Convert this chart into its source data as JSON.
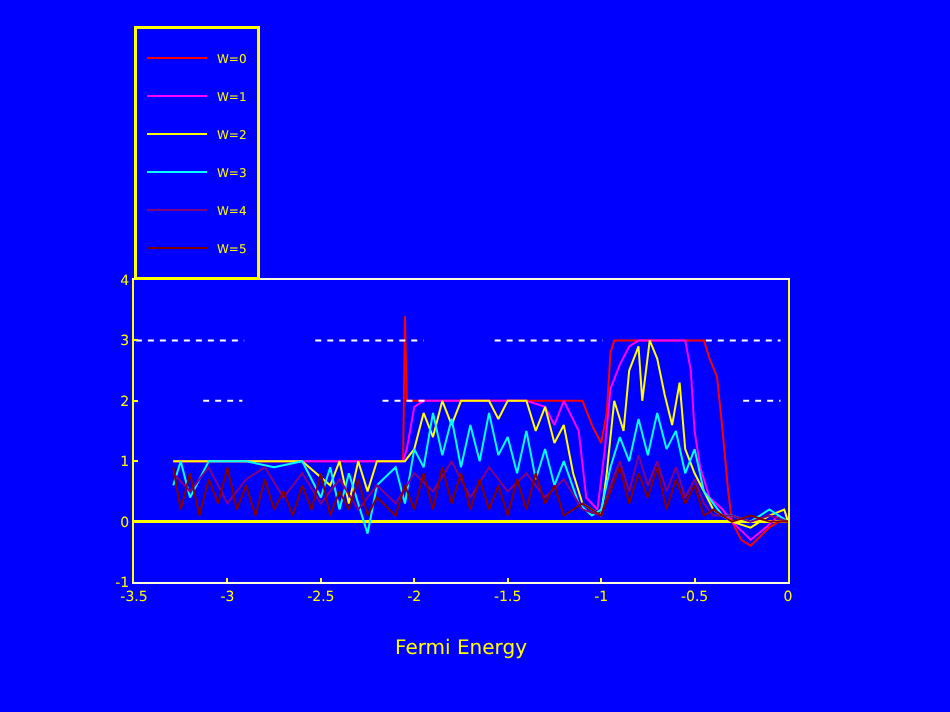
{
  "chart_data": {
    "type": "line",
    "xlabel": "Fermi Energy",
    "xlim": [
      -3.5,
      0
    ],
    "xticks": [
      -3.5,
      -3,
      -2.5,
      -2,
      -1.5,
      -1,
      -0.5,
      0
    ],
    "ylim": [
      -1,
      4
    ],
    "yticks": [
      -1,
      0,
      1,
      2,
      3,
      4
    ],
    "grid": false,
    "ref_lines": [
      {
        "axis": "y",
        "value": 0,
        "color": "#ffff00"
      }
    ],
    "legend": "top left",
    "marker": "none",
    "line_style": "solid",
    "series": [
      {
        "name": "W=0",
        "color": "#ff0000",
        "x": [
          -3.29,
          -2.06,
          -2.05,
          -2.04,
          -1.1,
          -1.05,
          -1.0,
          -0.97,
          -0.95,
          -0.93,
          -0.45,
          -0.42,
          -0.38,
          -0.35,
          -0.32,
          -0.3,
          -0.25,
          -0.2,
          -0.15,
          -0.1,
          -0.05,
          0
        ],
        "values": [
          1,
          1,
          3.4,
          2,
          2,
          1.6,
          1.3,
          1.8,
          2.8,
          3,
          3,
          2.7,
          2.4,
          1.5,
          0.5,
          0,
          -0.3,
          -0.4,
          -0.25,
          -0.1,
          0,
          0
        ]
      },
      {
        "name": "W=1",
        "color": "#ff00ff",
        "x": [
          -3.29,
          -2.06,
          -2.04,
          -2.0,
          -1.95,
          -1.4,
          -1.3,
          -1.25,
          -1.2,
          -1.12,
          -1.08,
          -1.02,
          -0.98,
          -0.95,
          -0.9,
          -0.85,
          -0.8,
          -0.55,
          -0.52,
          -0.5,
          -0.47,
          -0.42,
          -0.35,
          -0.3,
          -0.2,
          -0.12,
          -0.05,
          0
        ],
        "values": [
          1,
          1,
          1.2,
          1.9,
          2,
          2,
          1.9,
          1.6,
          2,
          1.5,
          0.4,
          0.2,
          1.2,
          2.2,
          2.6,
          2.9,
          3,
          3,
          2.5,
          1.5,
          0.9,
          0.4,
          0.2,
          0,
          -0.3,
          -0.1,
          0.1,
          0
        ]
      },
      {
        "name": "W=2",
        "color": "#ffff00",
        "x": [
          -3.29,
          -3.1,
          -2.9,
          -2.6,
          -2.45,
          -2.4,
          -2.35,
          -2.3,
          -2.25,
          -2.2,
          -2.05,
          -2.0,
          -1.95,
          -1.9,
          -1.85,
          -1.8,
          -1.75,
          -1.6,
          -1.55,
          -1.5,
          -1.4,
          -1.35,
          -1.3,
          -1.25,
          -1.2,
          -1.15,
          -1.1,
          -1.05,
          -1.0,
          -0.97,
          -0.93,
          -0.88,
          -0.85,
          -0.8,
          -0.78,
          -0.74,
          -0.7,
          -0.66,
          -0.62,
          -0.58,
          -0.55,
          -0.5,
          -0.45,
          -0.4,
          -0.35,
          -0.3,
          -0.2,
          -0.1,
          -0.02,
          0
        ],
        "values": [
          1,
          1,
          1,
          1,
          0.6,
          1,
          0.3,
          1,
          0.5,
          1,
          1,
          1.2,
          1.8,
          1.4,
          2,
          1.6,
          2,
          2,
          1.7,
          2,
          2,
          1.5,
          1.9,
          1.3,
          1.6,
          0.8,
          0.3,
          0.2,
          0.1,
          0.8,
          2,
          1.5,
          2.5,
          2.9,
          2,
          3,
          2.7,
          2.1,
          1.6,
          2.3,
          1.2,
          0.8,
          0.5,
          0.2,
          0.1,
          0,
          -0.1,
          0.1,
          0.2,
          0
        ]
      },
      {
        "name": "W=3",
        "color": "#00ffff",
        "x": [
          -3.29,
          -3.25,
          -3.2,
          -3.1,
          -2.9,
          -2.75,
          -2.6,
          -2.5,
          -2.45,
          -2.4,
          -2.35,
          -2.25,
          -2.2,
          -2.1,
          -2.05,
          -2.0,
          -1.95,
          -1.9,
          -1.85,
          -1.8,
          -1.75,
          -1.7,
          -1.65,
          -1.6,
          -1.55,
          -1.5,
          -1.45,
          -1.4,
          -1.35,
          -1.3,
          -1.25,
          -1.2,
          -1.12,
          -1.05,
          -1.0,
          -0.95,
          -0.9,
          -0.85,
          -0.8,
          -0.75,
          -0.7,
          -0.65,
          -0.6,
          -0.55,
          -0.5,
          -0.45,
          -0.4,
          -0.35,
          -0.3,
          -0.2,
          -0.1,
          0
        ],
        "values": [
          0.6,
          1,
          0.4,
          1,
          1,
          0.9,
          1,
          0.4,
          0.9,
          0.2,
          0.8,
          -0.2,
          0.6,
          0.9,
          0.3,
          1.2,
          0.9,
          1.8,
          1.1,
          1.7,
          0.9,
          1.6,
          1.0,
          1.8,
          1.1,
          1.4,
          0.8,
          1.5,
          0.7,
          1.2,
          0.6,
          1.0,
          0.3,
          0.1,
          0.2,
          0.9,
          1.4,
          1.0,
          1.7,
          1.1,
          1.8,
          1.2,
          1.5,
          0.8,
          1.2,
          0.5,
          0.3,
          0.1,
          0.1,
          0,
          0.2,
          0
        ]
      },
      {
        "name": "W=4",
        "color": "#800080",
        "x": [
          -3.29,
          -3.2,
          -3.1,
          -3.0,
          -2.9,
          -2.8,
          -2.7,
          -2.6,
          -2.5,
          -2.4,
          -2.3,
          -2.2,
          -2.1,
          -2.0,
          -1.9,
          -1.8,
          -1.7,
          -1.6,
          -1.5,
          -1.4,
          -1.3,
          -1.2,
          -1.1,
          -1.0,
          -0.95,
          -0.9,
          -0.85,
          -0.8,
          -0.75,
          -0.7,
          -0.65,
          -0.6,
          -0.55,
          -0.5,
          -0.45,
          -0.4,
          -0.3,
          -0.2,
          -0.1,
          0
        ],
        "values": [
          0.8,
          0.5,
          0.9,
          0.3,
          0.7,
          0.9,
          0.4,
          0.8,
          0.3,
          0.7,
          0.2,
          0.6,
          0.3,
          0.8,
          0.5,
          1.0,
          0.4,
          0.9,
          0.5,
          0.8,
          0.4,
          0.7,
          0.2,
          0.1,
          0.6,
          1.0,
          0.5,
          1.1,
          0.6,
          1.0,
          0.5,
          0.9,
          0.4,
          0.7,
          0.3,
          0.1,
          0.1,
          0,
          0.1,
          0
        ]
      },
      {
        "name": "W=5",
        "color": "#800000",
        "x": [
          -3.29,
          -3.25,
          -3.2,
          -3.15,
          -3.1,
          -3.05,
          -3.0,
          -2.95,
          -2.9,
          -2.85,
          -2.8,
          -2.75,
          -2.7,
          -2.65,
          -2.6,
          -2.55,
          -2.5,
          -2.45,
          -2.4,
          -2.35,
          -2.3,
          -2.25,
          -2.2,
          -2.1,
          -2.05,
          -2.0,
          -1.95,
          -1.9,
          -1.85,
          -1.8,
          -1.75,
          -1.7,
          -1.65,
          -1.6,
          -1.55,
          -1.5,
          -1.45,
          -1.4,
          -1.35,
          -1.3,
          -1.25,
          -1.2,
          -1.1,
          -1.0,
          -0.95,
          -0.9,
          -0.85,
          -0.8,
          -0.75,
          -0.7,
          -0.65,
          -0.6,
          -0.55,
          -0.5,
          -0.45,
          -0.4,
          -0.3,
          -0.2,
          -0.1,
          0
        ],
        "values": [
          0.9,
          0.2,
          0.8,
          0.1,
          0.7,
          0.3,
          0.9,
          0.2,
          0.6,
          0.1,
          0.7,
          0.2,
          0.5,
          0.1,
          0.6,
          0.2,
          0.8,
          0.1,
          0.5,
          0.2,
          0.7,
          0.1,
          0.4,
          0.1,
          0.6,
          0.2,
          0.8,
          0.2,
          0.9,
          0.3,
          0.8,
          0.2,
          0.7,
          0.2,
          0.6,
          0.1,
          0.7,
          0.2,
          0.8,
          0.3,
          0.6,
          0.1,
          0.3,
          0.1,
          0.5,
          0.9,
          0.3,
          0.8,
          0.4,
          0.9,
          0.2,
          0.7,
          0.3,
          0.6,
          0.1,
          0.2,
          0,
          0.1,
          0,
          0
        ]
      },
      {
        "color": "#ffffff",
        "line_style": "dotted",
        "x": [
          -3.49,
          -2.91,
          -2.9,
          -2.53,
          -1.95,
          -1.9,
          -1.57,
          -0.99,
          -0.9,
          -0.44,
          -0.04
        ],
        "values": [
          3,
          3,
          null,
          3,
          3,
          null,
          3,
          3,
          null,
          3,
          3
        ]
      },
      {
        "color": "#ffffff",
        "line_style": "dotted",
        "x": [
          -3.13,
          -2.92,
          -2.5,
          -2.17,
          -1.94,
          -1.0,
          -0.24,
          -0.04
        ],
        "values": [
          2,
          2,
          null,
          2,
          2,
          null,
          2,
          2
        ]
      }
    ]
  }
}
